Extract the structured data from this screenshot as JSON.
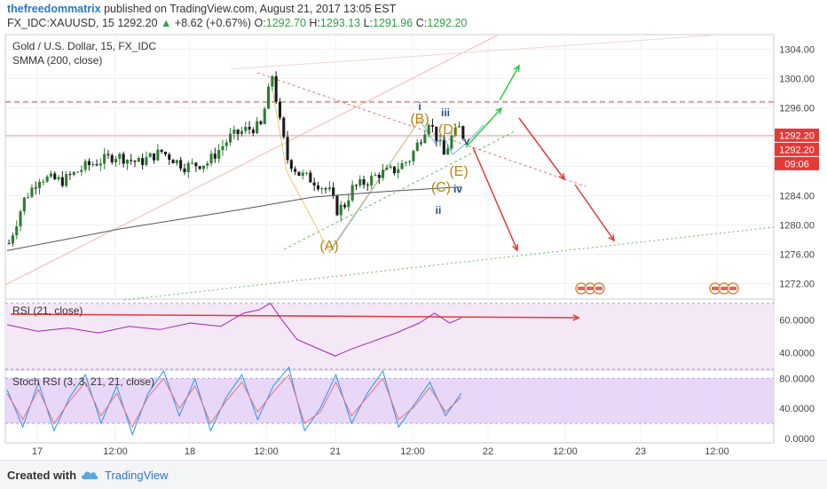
{
  "header": {
    "author": "thefreedommatrix",
    "published": " published on TradingView.com, August 21, 2017 13:05 EST",
    "symbol": "FX_IDC:XAUUSD, 15",
    "last": "1292.20",
    "change": "+8.62 (+0.67%)",
    "o_label": "O:",
    "o_value": "1292.70",
    "h_label": "H:",
    "h_value": "1293.13",
    "l_label": "L:",
    "l_value": "1291.96",
    "c_label": "C:",
    "c_value": "1292.20"
  },
  "legend": {
    "title": "Gold / U.S. Dollar, 15, FX_IDC",
    "smma": "SMMA (200, close)",
    "rsi": "RSI (21, close)",
    "stoch": "Stoch RSI (3, 3, 21, 21, close)"
  },
  "footer": {
    "created": "Created with",
    "brand": "TradingView"
  },
  "colors": {
    "candle_up": "#2e7d32",
    "candle_down": "#1b1b1b",
    "price_badge": "#e53935",
    "wave_label": "#b8860b",
    "wave_sub": "#1f4e8c",
    "rsi_line": "#9c27b0",
    "stoch_k": "#2196f3",
    "stoch_d": "#e57373",
    "target_arrow_up": "#2ecc40",
    "target_arrow_down": "#e53935"
  },
  "chart_data": [
    {
      "type": "candlestick",
      "title": "Gold / U.S. Dollar, 15, FX_IDC",
      "ylim": [
        1270,
        1306
      ],
      "y_ticks": [
        "1304.00",
        "1300.00",
        "1296.00",
        "1292.00",
        "1288.00",
        "1284.00",
        "1280.00",
        "1276.00",
        "1272.00"
      ],
      "x_ticks": [
        "17",
        "12:00",
        "18",
        "12:00",
        "21",
        "12:00",
        "22",
        "12:00",
        "23",
        "12:00"
      ],
      "price_badges": [
        "1292.20",
        "1292.20",
        "09:06"
      ],
      "path": [
        [
          0,
          1277.5
        ],
        [
          4,
          1283.5
        ],
        [
          8,
          1286.5
        ],
        [
          14,
          1286
        ],
        [
          20,
          1288
        ],
        [
          28,
          1289.5
        ],
        [
          34,
          1288.5
        ],
        [
          40,
          1290
        ],
        [
          46,
          1288
        ],
        [
          52,
          1288.5
        ],
        [
          58,
          1292
        ],
        [
          62,
          1293
        ],
        [
          66,
          1293.5
        ],
        [
          69,
          1300.5
        ],
        [
          71,
          1294
        ],
        [
          73,
          1289
        ],
        [
          76,
          1287
        ],
        [
          80,
          1286
        ],
        [
          84,
          1284.5
        ],
        [
          86,
          1282
        ],
        [
          88,
          1282.8
        ],
        [
          90,
          1285
        ],
        [
          94,
          1286
        ],
        [
          97,
          1287
        ],
        [
          101,
          1287.5
        ],
        [
          105,
          1289
        ],
        [
          108,
          1292
        ],
        [
          110,
          1294.3
        ],
        [
          112,
          1292
        ],
        [
          114,
          1289.5
        ],
        [
          116,
          1292
        ],
        [
          118,
          1293.2
        ],
        [
          119,
          1292.2
        ]
      ],
      "smma": [
        [
          0,
          1276.5
        ],
        [
          30,
          1279.5
        ],
        [
          60,
          1282
        ],
        [
          80,
          1283.8
        ],
        [
          100,
          1284.6
        ],
        [
          119,
          1285.2
        ]
      ],
      "wave_labels": [
        "(A)",
        "(B)",
        "(C)",
        "(D)",
        "(E)",
        "i",
        "ii",
        "iii",
        "iv",
        "v"
      ],
      "levels": {
        "resistance": 1296.8,
        "last": 1292.2
      }
    },
    {
      "type": "line",
      "title": "RSI (21, close)",
      "ylim": [
        30,
        72
      ],
      "y_ticks": [
        "60.0000",
        "40.0000"
      ],
      "x": [
        0,
        8,
        16,
        24,
        32,
        40,
        48,
        56,
        62,
        66,
        69,
        72,
        76,
        80,
        86,
        90,
        96,
        102,
        108,
        112,
        116,
        119
      ],
      "values": [
        57,
        53,
        55,
        52,
        56,
        54,
        58,
        56,
        64,
        66,
        70,
        60,
        48,
        44,
        38,
        42,
        47,
        52,
        58,
        64,
        58,
        61
      ]
    },
    {
      "type": "line",
      "title": "Stoch RSI (3, 3, 21, 21, close)",
      "ylim": [
        -5,
        90
      ],
      "y_ticks": [
        "80.0000",
        "40.0000",
        "0.0000"
      ],
      "series": [
        {
          "values": [
            65,
            15,
            75,
            10,
            55,
            85,
            20,
            70,
            5,
            60,
            90,
            30,
            80,
            10,
            55,
            85,
            25,
            70,
            95,
            10,
            40,
            85,
            20,
            60,
            90,
            15,
            45,
            75,
            30,
            60
          ]
        },
        {
          "values": [
            60,
            25,
            65,
            20,
            50,
            75,
            30,
            60,
            15,
            55,
            80,
            40,
            70,
            20,
            50,
            75,
            35,
            62,
            85,
            20,
            35,
            75,
            30,
            55,
            80,
            25,
            42,
            68,
            35,
            55
          ]
        }
      ]
    }
  ]
}
